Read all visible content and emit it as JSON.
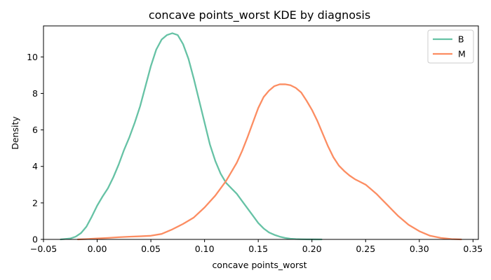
{
  "chart_data": {
    "type": "line",
    "title": "concave points_worst KDE by diagnosis",
    "xlabel": "concave points_worst",
    "ylabel": "Density",
    "xlim": [
      -0.05,
      0.355
    ],
    "ylim": [
      0,
      11.7
    ],
    "x_ticks": [
      -0.05,
      0.0,
      0.05,
      0.1,
      0.15,
      0.2,
      0.25,
      0.3,
      0.35
    ],
    "x_tick_labels": [
      "−0.05",
      "0.00",
      "0.05",
      "0.10",
      "0.15",
      "0.20",
      "0.25",
      "0.30",
      "0.35"
    ],
    "y_ticks": [
      0,
      2,
      4,
      6,
      8,
      10
    ],
    "y_tick_labels": [
      "0",
      "2",
      "4",
      "6",
      "8",
      "10"
    ],
    "grid": false,
    "legend_position": "top-right",
    "series": [
      {
        "name": "B",
        "color": "#66c2a5",
        "x": [
          -0.034,
          -0.025,
          -0.02,
          -0.015,
          -0.01,
          -0.005,
          0.0,
          0.005,
          0.01,
          0.015,
          0.02,
          0.025,
          0.03,
          0.035,
          0.04,
          0.045,
          0.05,
          0.055,
          0.06,
          0.065,
          0.07,
          0.075,
          0.08,
          0.085,
          0.09,
          0.095,
          0.1,
          0.105,
          0.11,
          0.115,
          0.12,
          0.125,
          0.13,
          0.135,
          0.14,
          0.145,
          0.15,
          0.155,
          0.16,
          0.165,
          0.17,
          0.175,
          0.18,
          0.185,
          0.19,
          0.195,
          0.2,
          0.209
        ],
        "y": [
          0.0,
          0.05,
          0.15,
          0.35,
          0.7,
          1.25,
          1.85,
          2.35,
          2.8,
          3.4,
          4.1,
          4.9,
          5.6,
          6.4,
          7.3,
          8.4,
          9.5,
          10.4,
          10.95,
          11.2,
          11.3,
          11.2,
          10.7,
          9.9,
          8.8,
          7.6,
          6.4,
          5.2,
          4.3,
          3.6,
          3.1,
          2.8,
          2.5,
          2.1,
          1.7,
          1.3,
          0.9,
          0.6,
          0.38,
          0.25,
          0.15,
          0.08,
          0.04,
          0.02,
          0.01,
          0.005,
          0.002,
          0.0
        ]
      },
      {
        "name": "M",
        "color": "#fc8d62",
        "x": [
          -0.018,
          -0.01,
          0.0,
          0.01,
          0.02,
          0.03,
          0.04,
          0.05,
          0.06,
          0.07,
          0.08,
          0.09,
          0.1,
          0.11,
          0.12,
          0.125,
          0.13,
          0.135,
          0.14,
          0.145,
          0.15,
          0.155,
          0.16,
          0.165,
          0.17,
          0.175,
          0.18,
          0.185,
          0.19,
          0.195,
          0.2,
          0.205,
          0.21,
          0.215,
          0.22,
          0.225,
          0.23,
          0.235,
          0.24,
          0.245,
          0.25,
          0.255,
          0.26,
          0.265,
          0.27,
          0.275,
          0.28,
          0.29,
          0.3,
          0.31,
          0.32,
          0.33,
          0.339
        ],
        "y": [
          0.0,
          0.02,
          0.05,
          0.08,
          0.12,
          0.15,
          0.17,
          0.2,
          0.3,
          0.55,
          0.85,
          1.2,
          1.75,
          2.4,
          3.2,
          3.7,
          4.2,
          4.85,
          5.6,
          6.4,
          7.2,
          7.8,
          8.15,
          8.4,
          8.5,
          8.5,
          8.45,
          8.3,
          8.05,
          7.6,
          7.1,
          6.5,
          5.8,
          5.1,
          4.5,
          4.05,
          3.75,
          3.5,
          3.3,
          3.15,
          3.0,
          2.75,
          2.5,
          2.2,
          1.9,
          1.6,
          1.3,
          0.8,
          0.45,
          0.2,
          0.08,
          0.02,
          0.0
        ]
      }
    ]
  }
}
